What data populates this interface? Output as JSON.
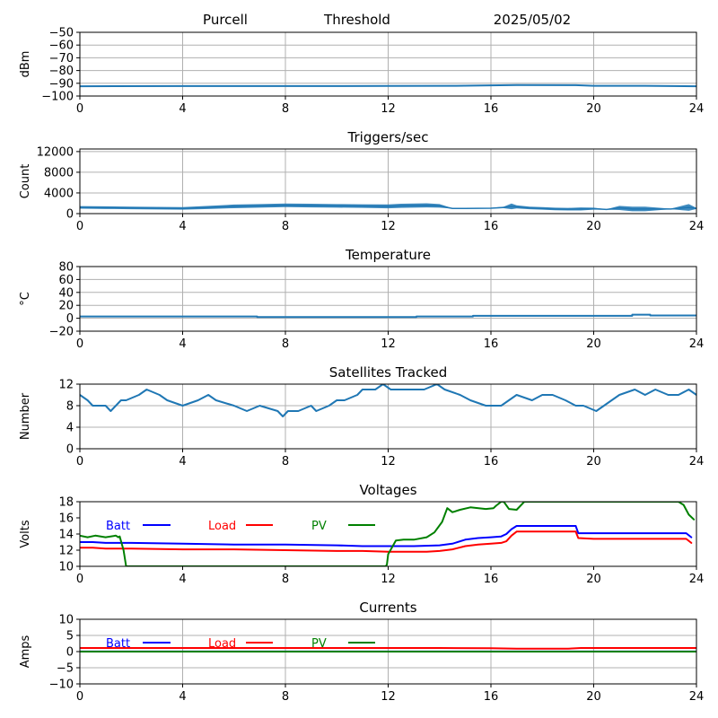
{
  "header": {
    "site": "Purcell",
    "mode": "Threshold",
    "date": "2025/05/02"
  },
  "colors": {
    "series": "#1f77b4",
    "batt": "#0000ff",
    "load": "#ff0000",
    "pv": "#008000",
    "grid": "#b0b0b0"
  },
  "chart_data": [
    {
      "id": "signal",
      "type": "line",
      "title": "",
      "ylabel": "dBm",
      "xlim": [
        0,
        24
      ],
      "ylim": [
        -100,
        -50
      ],
      "xticks": [
        0,
        4,
        8,
        12,
        16,
        20,
        24
      ],
      "yticks": [
        -100,
        -90,
        -80,
        -70,
        -60,
        -50
      ],
      "grid": true,
      "series": [
        {
          "x": [
            0,
            4,
            8,
            12,
            14.5,
            16,
            17,
            19.3,
            20,
            22,
            24
          ],
          "y": [
            -92.3,
            -92.2,
            -92.2,
            -92.1,
            -92.0,
            -91.6,
            -91.4,
            -91.5,
            -92.0,
            -92.0,
            -92.3
          ]
        }
      ]
    },
    {
      "id": "triggers",
      "type": "line",
      "title": "Triggers/sec",
      "ylabel": "Count",
      "xlim": [
        0,
        24
      ],
      "ylim": [
        0,
        12500
      ],
      "xticks": [
        0,
        4,
        8,
        12,
        16,
        20,
        24
      ],
      "yticks": [
        0,
        4000,
        8000,
        12000
      ],
      "grid": true,
      "series": [
        {
          "x": [
            0,
            1,
            2,
            3,
            4,
            5,
            6,
            7,
            8,
            9,
            10,
            11,
            12,
            12.5,
            13,
            13.5,
            14,
            14.5,
            15,
            16,
            16.5,
            16.8,
            17,
            17.5,
            18,
            18.5,
            19,
            19.5,
            20,
            20.5,
            21,
            21.5,
            22,
            23,
            23.7,
            24
          ],
          "y": [
            1200,
            1150,
            1100,
            1050,
            1000,
            1200,
            1400,
            1500,
            1600,
            1550,
            1500,
            1450,
            1400,
            1500,
            1550,
            1600,
            1500,
            1000,
            1000,
            1050,
            1200,
            1400,
            1300,
            1100,
            1000,
            900,
            850,
            900,
            950,
            800,
            1100,
            900,
            900,
            900,
            1200,
            1000
          ],
          "band": [
            500,
            500,
            500,
            500,
            500,
            600,
            700,
            700,
            700,
            700,
            700,
            700,
            750,
            800,
            800,
            800,
            700,
            100,
            100,
            100,
            300,
            1100,
            600,
            500,
            500,
            500,
            500,
            600,
            400,
            100,
            800,
            900,
            900,
            100,
            1300,
            200
          ]
        }
      ]
    },
    {
      "id": "temperature",
      "type": "line",
      "title": "Temperature",
      "ylabel": "°C",
      "xlim": [
        0,
        24
      ],
      "ylim": [
        -20,
        80
      ],
      "xticks": [
        0,
        4,
        8,
        12,
        16,
        20,
        24
      ],
      "yticks": [
        -20,
        0,
        20,
        40,
        60,
        80
      ],
      "grid": true,
      "series": [
        {
          "x": [
            0,
            6.9,
            6.9,
            13.1,
            13.1,
            15.3,
            15.3,
            21.5,
            21.5,
            22.2,
            22.2,
            24
          ],
          "y": [
            2.8,
            2.8,
            1.8,
            1.8,
            2.8,
            2.8,
            3.8,
            3.8,
            5.5,
            5.5,
            4.3,
            4.3
          ]
        }
      ]
    },
    {
      "id": "satellites",
      "type": "line",
      "title": "Satellites Tracked",
      "ylabel": "Number",
      "xlim": [
        0,
        24
      ],
      "ylim": [
        0,
        12
      ],
      "xticks": [
        0,
        4,
        8,
        12,
        16,
        20,
        24
      ],
      "yticks": [
        0,
        4,
        8,
        12
      ],
      "grid": true,
      "series": [
        {
          "x": [
            0,
            0.3,
            0.5,
            1,
            1.2,
            1.4,
            1.6,
            1.8,
            2.3,
            2.6,
            3.1,
            3.4,
            4,
            4.6,
            5,
            5.3,
            6,
            6.5,
            7,
            7.7,
            7.9,
            8.1,
            8.5,
            9,
            9.2,
            9.7,
            10,
            10.3,
            10.8,
            11,
            11.5,
            11.8,
            12.1,
            12.6,
            13.4,
            13.9,
            14.2,
            14.8,
            15.2,
            15.8,
            16.4,
            16.7,
            17,
            17.6,
            18,
            18.4,
            18.9,
            19.3,
            19.6,
            20.1,
            20.4,
            20.7,
            21,
            21.6,
            22,
            22.4,
            22.9,
            23.3,
            23.7,
            24
          ],
          "y": [
            10,
            9,
            8,
            8,
            7,
            8,
            9,
            9,
            10,
            11,
            10,
            9,
            8,
            9,
            10,
            9,
            8,
            7,
            8,
            7,
            6,
            7,
            7,
            8,
            7,
            8,
            9,
            9,
            10,
            11,
            11,
            12,
            11,
            11,
            11,
            12,
            11,
            10,
            9,
            8,
            8,
            9,
            10,
            9,
            10,
            10,
            9,
            8,
            8,
            7,
            8,
            9,
            10,
            11,
            10,
            11,
            10,
            10,
            11,
            10
          ]
        }
      ]
    },
    {
      "id": "voltages",
      "type": "line",
      "title": "Voltages",
      "ylabel": "Volts",
      "xlim": [
        0,
        24
      ],
      "ylim": [
        10,
        18
      ],
      "xticks": [
        0,
        4,
        8,
        12,
        16,
        20,
        24
      ],
      "yticks": [
        10,
        12,
        14,
        16,
        18
      ],
      "grid": false,
      "legend": [
        "Batt",
        "Load",
        "PV"
      ],
      "series": [
        {
          "name": "Batt",
          "color_key": "batt",
          "x": [
            0,
            0.5,
            1,
            2,
            4,
            6,
            8,
            10,
            11,
            12,
            12.5,
            13,
            14,
            14.5,
            15,
            15.5,
            16,
            16.4,
            16.6,
            16.8,
            17,
            19.3,
            19.4,
            20,
            22,
            23.6,
            23.8
          ],
          "y": [
            13.0,
            13.0,
            12.9,
            12.9,
            12.8,
            12.7,
            12.7,
            12.6,
            12.5,
            12.5,
            12.5,
            12.5,
            12.6,
            12.8,
            13.3,
            13.5,
            13.6,
            13.7,
            14.0,
            14.6,
            15.0,
            15.0,
            14.1,
            14.1,
            14.1,
            14.1,
            13.6
          ]
        },
        {
          "name": "Load",
          "color_key": "load",
          "x": [
            0,
            0.5,
            1,
            2,
            4,
            6,
            8,
            10,
            11,
            12,
            12.5,
            13,
            13.5,
            14,
            14.5,
            15,
            15.5,
            16,
            16.4,
            16.6,
            16.8,
            17,
            19.3,
            19.4,
            20,
            22,
            23.6,
            23.8
          ],
          "y": [
            12.3,
            12.3,
            12.2,
            12.2,
            12.1,
            12.1,
            12.0,
            11.9,
            11.9,
            11.8,
            11.8,
            11.8,
            11.8,
            11.9,
            12.1,
            12.5,
            12.7,
            12.8,
            12.9,
            13.1,
            13.8,
            14.3,
            14.3,
            13.5,
            13.4,
            13.4,
            13.4,
            12.9
          ]
        },
        {
          "name": "PV",
          "color_key": "pv",
          "x": [
            0,
            0.3,
            0.6,
            1.0,
            1.4,
            1.5,
            1.55,
            1.7,
            1.8,
            11.9,
            11.95,
            12.0,
            12.3,
            12.6,
            13.0,
            13.5,
            13.8,
            14.1,
            14.3,
            14.5,
            14.8,
            15.2,
            15.8,
            16.1,
            16.2,
            16.4,
            16.5,
            16.7,
            17.0,
            17.3,
            23.3,
            23.5,
            23.7,
            23.9
          ],
          "y": [
            13.8,
            13.6,
            13.8,
            13.6,
            13.8,
            13.6,
            13.7,
            12.0,
            10.0,
            10.0,
            10.2,
            11.5,
            13.2,
            13.3,
            13.3,
            13.6,
            14.2,
            15.5,
            17.2,
            16.7,
            17.0,
            17.3,
            17.1,
            17.2,
            17.5,
            18.0,
            18.0,
            17.1,
            17.0,
            18.0,
            18.0,
            17.6,
            16.4,
            15.8
          ]
        }
      ]
    },
    {
      "id": "currents",
      "type": "line",
      "title": "Currents",
      "ylabel": "Amps",
      "xlim": [
        0,
        24
      ],
      "ylim": [
        -10,
        10
      ],
      "xticks": [
        0,
        4,
        8,
        12,
        16,
        20,
        24
      ],
      "yticks": [
        -10,
        -5,
        0,
        5,
        10
      ],
      "grid": true,
      "legend": [
        "Batt",
        "Load",
        "PV"
      ],
      "series": [
        {
          "name": "Batt",
          "color_key": "batt",
          "x": [
            0,
            24
          ],
          "y": [
            0.05,
            0.05
          ]
        },
        {
          "name": "Load",
          "color_key": "load",
          "x": [
            0,
            14,
            16,
            17,
            19,
            19.5,
            24
          ],
          "y": [
            1.1,
            1.1,
            1.05,
            0.9,
            0.9,
            1.1,
            1.1
          ]
        },
        {
          "name": "PV",
          "color_key": "pv",
          "x": [
            0,
            24
          ],
          "y": [
            0.0,
            0.0
          ]
        }
      ]
    }
  ]
}
